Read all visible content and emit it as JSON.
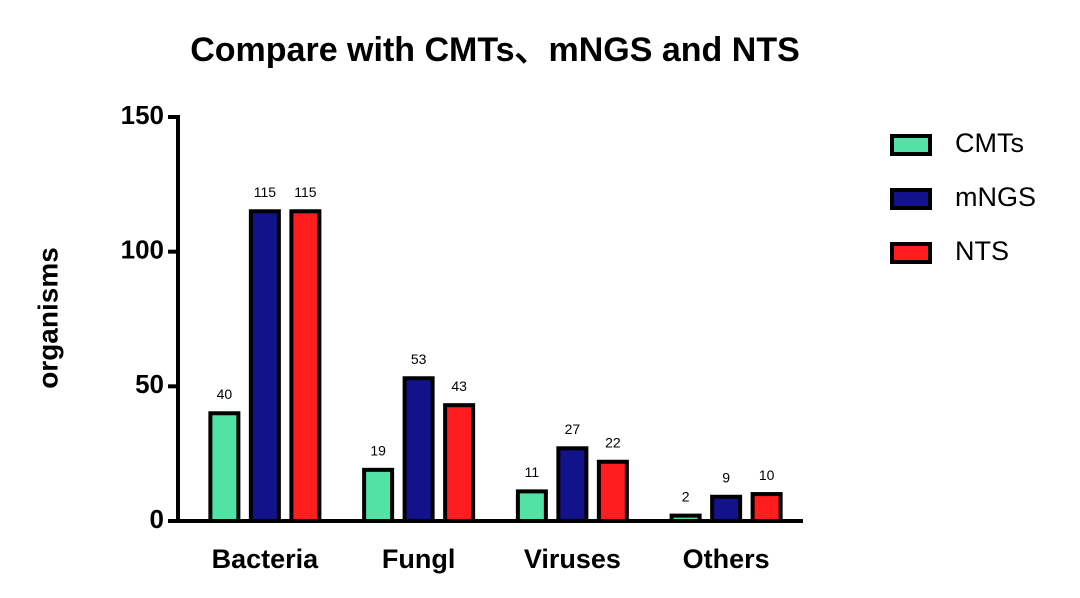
{
  "chart_data": {
    "type": "bar",
    "title": "Compare with CMTs、mNGS and NTS",
    "y_label": "organisms",
    "categories": [
      "Bacteria",
      "Fungl",
      "Viruses",
      "Others"
    ],
    "series": [
      {
        "name": "CMTs",
        "color": "#50e3a5",
        "values": [
          40,
          19,
          11,
          2
        ]
      },
      {
        "name": "mNGS",
        "color": "#12128a",
        "values": [
          115,
          53,
          27,
          9
        ]
      },
      {
        "name": "NTS",
        "color": "#ff1c1c",
        "values": [
          115,
          43,
          22,
          10
        ]
      }
    ],
    "ylim": [
      0,
      150
    ],
    "yticks": [
      0,
      50,
      100,
      150
    ],
    "legend": "right"
  }
}
